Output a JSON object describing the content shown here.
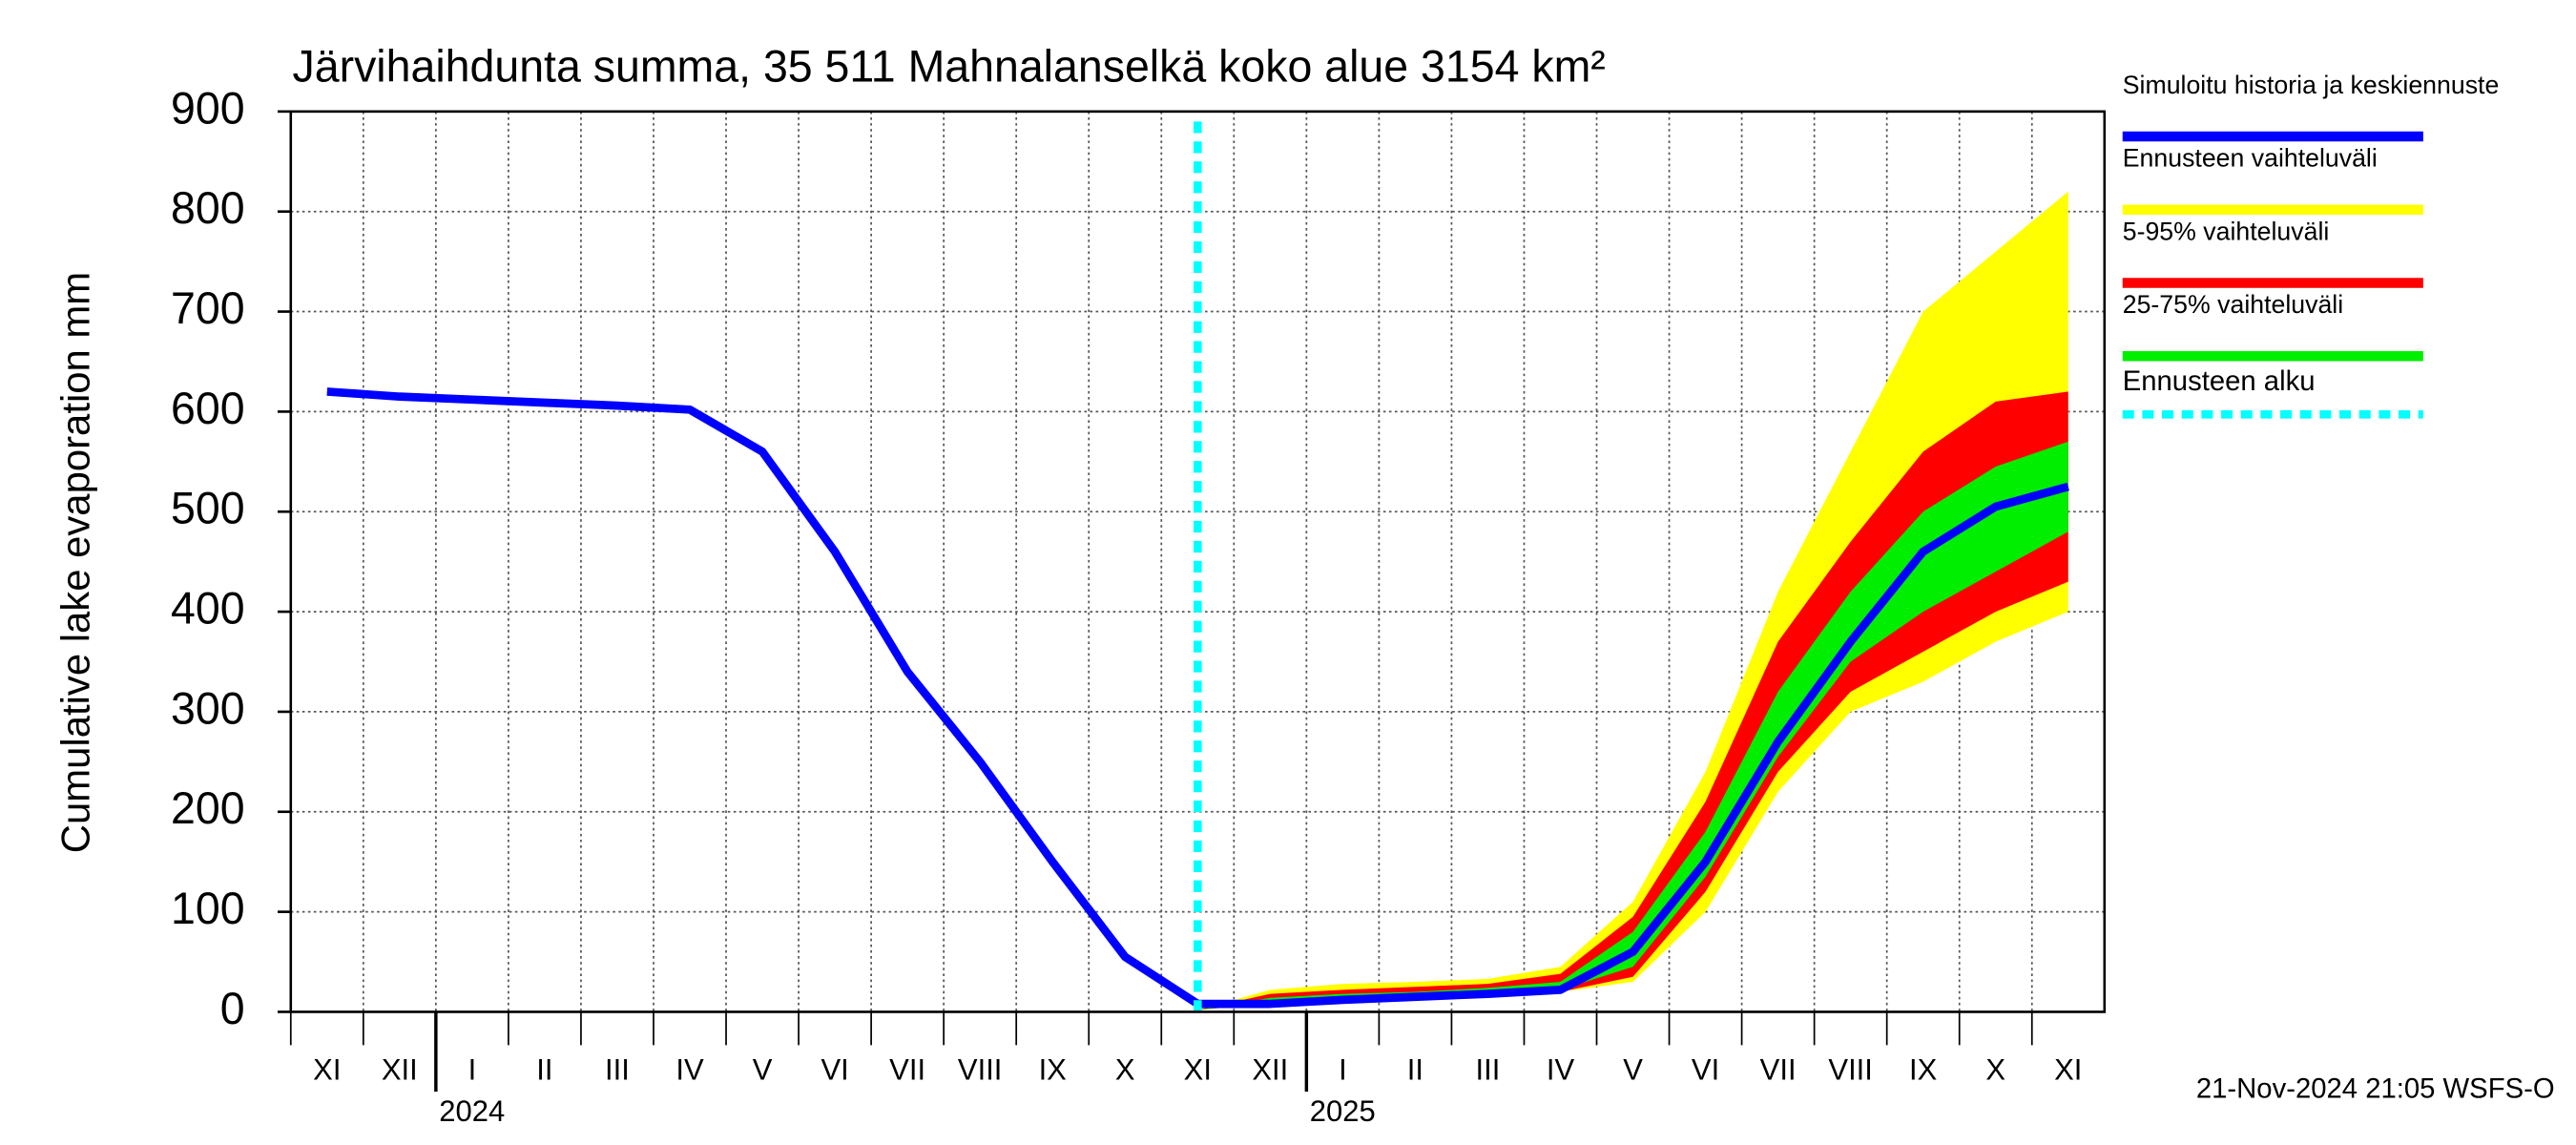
{
  "chart_data": {
    "type": "line",
    "title": "Järvihaihdunta summa, 35 511 Mahnalanselkä koko alue 3154 km²",
    "y_label": "Cumulative lake evaporation   mm",
    "footer": "21-Nov-2024 21:05 WSFS-O",
    "categories": [
      "XI",
      "XII",
      "I",
      "II",
      "III",
      "IV",
      "V",
      "VI",
      "VII",
      "VIII",
      "IX",
      "X",
      "XI",
      "XII",
      "I",
      "II",
      "III",
      "IV",
      "V",
      "VI",
      "VII",
      "VIII",
      "IX",
      "X",
      "XI"
    ],
    "years": [
      "2024",
      "2025"
    ],
    "ylim": [
      0,
      900
    ],
    "yticks": [
      0,
      100,
      200,
      300,
      400,
      500,
      600,
      700,
      800,
      900
    ],
    "grid": true,
    "series": [
      {
        "name": "Simuloitu historia ja keskiennuste",
        "color": "#0000ff",
        "values": [
          620,
          615,
          612,
          609,
          606,
          602,
          560,
          460,
          340,
          250,
          150,
          55,
          8,
          8,
          12,
          15,
          18,
          22,
          60,
          150,
          270,
          370,
          460,
          505,
          525
        ]
      },
      {
        "name": "Ennusteen vaihteluväli",
        "color": "#ffff00",
        "low": [
          null,
          null,
          null,
          null,
          null,
          null,
          null,
          null,
          null,
          null,
          null,
          null,
          2,
          8,
          12,
          15,
          18,
          20,
          30,
          100,
          220,
          300,
          330,
          370,
          400
        ],
        "high": [
          null,
          null,
          null,
          null,
          null,
          null,
          null,
          null,
          null,
          null,
          null,
          null,
          2,
          22,
          28,
          30,
          33,
          45,
          110,
          240,
          420,
          560,
          700,
          760,
          820
        ]
      },
      {
        "name": "5-95% vaihteluväli",
        "color": "#ff0000",
        "low": [
          null,
          null,
          null,
          null,
          null,
          null,
          null,
          null,
          null,
          null,
          null,
          null,
          2,
          8,
          13,
          15,
          18,
          20,
          35,
          120,
          240,
          320,
          360,
          400,
          430
        ],
        "high": [
          null,
          null,
          null,
          null,
          null,
          null,
          null,
          null,
          null,
          null,
          null,
          null,
          2,
          18,
          22,
          25,
          28,
          38,
          95,
          210,
          370,
          470,
          560,
          610,
          620
        ]
      },
      {
        "name": "25-75% vaihteluväli",
        "color": "#00ee00",
        "low": [
          null,
          null,
          null,
          null,
          null,
          null,
          null,
          null,
          null,
          null,
          null,
          null,
          2,
          9,
          13,
          16,
          19,
          22,
          45,
          135,
          255,
          350,
          400,
          440,
          480
        ],
        "high": [
          null,
          null,
          null,
          null,
          null,
          null,
          null,
          null,
          null,
          null,
          null,
          null,
          2,
          14,
          18,
          20,
          24,
          30,
          80,
          180,
          320,
          420,
          500,
          545,
          570
        ]
      }
    ],
    "forecast_start_label": "Ennusteen alku",
    "forecast_start_color": "#00ffff"
  }
}
